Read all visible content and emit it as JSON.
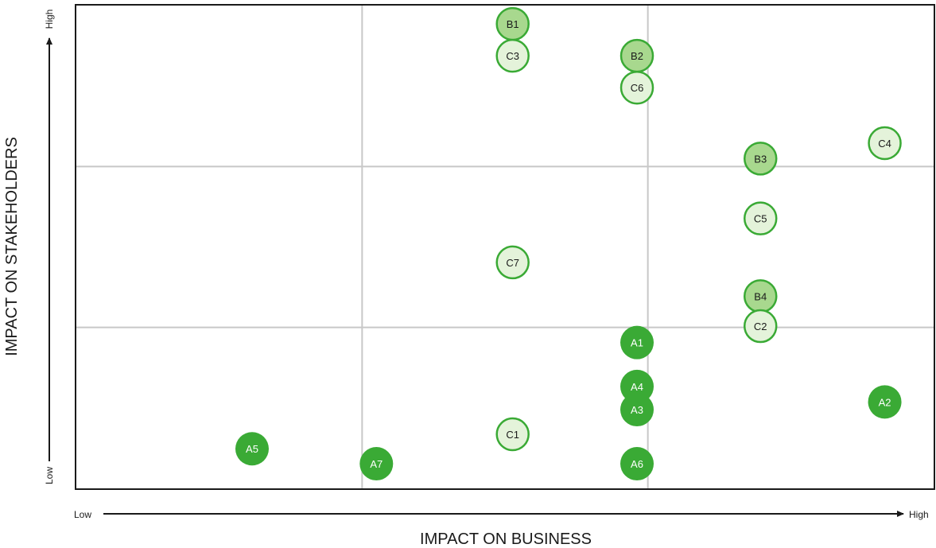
{
  "chart_data": {
    "type": "scatter",
    "title": "",
    "xlabel": "IMPACT ON BUSINESS",
    "ylabel": "IMPACT ON STAKEHOLDERS",
    "x_low_label": "Low",
    "x_high_label": "High",
    "y_low_label": "Low",
    "y_high_label": "High",
    "xlim": [
      0,
      100
    ],
    "ylim": [
      0,
      100
    ],
    "grid": "3x3 quadrant lines",
    "colors": {
      "A": "#3aaa35",
      "B": "#a8d88e",
      "C": "#e4f3da",
      "outline": "#3aaa35",
      "frame": "#1a1a1a",
      "grid": "#c8c8c8"
    },
    "points": [
      {
        "label": "B1",
        "group": "B",
        "x": 50.9,
        "y": 96.2
      },
      {
        "label": "C3",
        "group": "C",
        "x": 50.9,
        "y": 89.6
      },
      {
        "label": "B2",
        "group": "B",
        "x": 65.4,
        "y": 89.6
      },
      {
        "label": "C6",
        "group": "C",
        "x": 65.4,
        "y": 83.0
      },
      {
        "label": "C4",
        "group": "C",
        "x": 94.3,
        "y": 71.5
      },
      {
        "label": "B3",
        "group": "B",
        "x": 79.8,
        "y": 68.3
      },
      {
        "label": "C5",
        "group": "C",
        "x": 79.8,
        "y": 55.9
      },
      {
        "label": "C7",
        "group": "C",
        "x": 50.9,
        "y": 46.8
      },
      {
        "label": "B4",
        "group": "B",
        "x": 79.8,
        "y": 39.8
      },
      {
        "label": "C2",
        "group": "C",
        "x": 79.8,
        "y": 33.6
      },
      {
        "label": "A1",
        "group": "A",
        "x": 65.4,
        "y": 30.2
      },
      {
        "label": "A4",
        "group": "A",
        "x": 65.4,
        "y": 21.1
      },
      {
        "label": "A2",
        "group": "A",
        "x": 94.3,
        "y": 17.9
      },
      {
        "label": "A3",
        "group": "A",
        "x": 65.4,
        "y": 16.3
      },
      {
        "label": "C1",
        "group": "C",
        "x": 50.9,
        "y": 11.2
      },
      {
        "label": "A5",
        "group": "A",
        "x": 20.5,
        "y": 8.2
      },
      {
        "label": "A7",
        "group": "A",
        "x": 35.0,
        "y": 5.1
      },
      {
        "label": "A6",
        "group": "A",
        "x": 65.4,
        "y": 5.1
      }
    ]
  }
}
